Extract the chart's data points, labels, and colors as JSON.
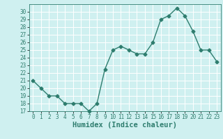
{
  "x": [
    0,
    1,
    2,
    3,
    4,
    5,
    6,
    7,
    8,
    9,
    10,
    11,
    12,
    13,
    14,
    15,
    16,
    17,
    18,
    19,
    20,
    21,
    22,
    23
  ],
  "y": [
    21,
    20,
    19,
    19,
    18,
    18,
    18,
    17,
    18,
    22.5,
    25,
    25.5,
    25,
    24.5,
    24.5,
    26,
    29,
    29.5,
    30.5,
    29.5,
    27.5,
    25,
    25,
    23.5
  ],
  "line_color": "#2e7d6e",
  "marker": "D",
  "marker_size": 2.5,
  "bg_color": "#cff0f0",
  "grid_color": "#ffffff",
  "xlabel": "Humidex (Indice chaleur)",
  "ylim": [
    17,
    31
  ],
  "xlim": [
    -0.5,
    23.5
  ],
  "yticks": [
    17,
    18,
    19,
    20,
    21,
    22,
    23,
    24,
    25,
    26,
    27,
    28,
    29,
    30
  ],
  "xticks": [
    0,
    1,
    2,
    3,
    4,
    5,
    6,
    7,
    8,
    9,
    10,
    11,
    12,
    13,
    14,
    15,
    16,
    17,
    18,
    19,
    20,
    21,
    22,
    23
  ],
  "tick_labelsize": 5.5,
  "xlabel_fontsize": 7.5,
  "linewidth": 1.0
}
